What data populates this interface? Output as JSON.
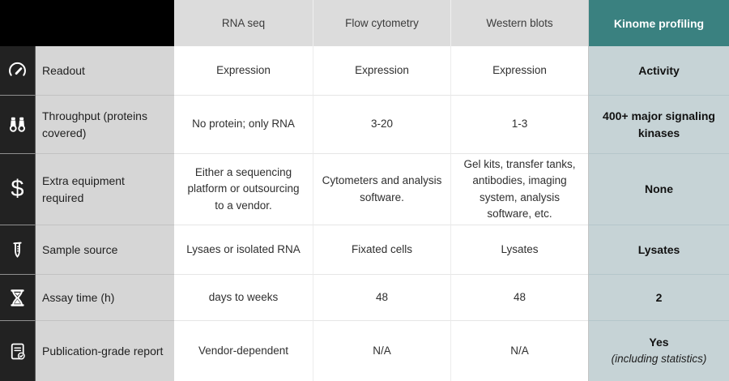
{
  "table": {
    "columns": [
      "RNA seq",
      "Flow cytometry",
      "Western blots",
      "Kinome profiling"
    ],
    "rows": [
      {
        "icon": "gauge-icon",
        "label": "Readout",
        "values": [
          "Expression",
          "Expression",
          "Expression",
          "Activity"
        ]
      },
      {
        "icon": "binoculars-icon",
        "label": "Throughput (proteins covered)",
        "values": [
          "No protein; only RNA",
          "3-20",
          "1-3",
          "400+ major signaling kinases"
        ]
      },
      {
        "icon": "dollar-icon",
        "label": "Extra equipment required",
        "values": [
          "Either a sequencing platform or outsourcing to a vendor.",
          "Cytometers and analysis software.",
          "Gel kits, transfer tanks, antibodies, imaging system, analysis software, etc.",
          "None"
        ]
      },
      {
        "icon": "tube-icon",
        "label": "Sample source",
        "values": [
          "Lysaes or isolated RNA",
          "Fixated cells",
          "Lysates",
          "Lysates"
        ]
      },
      {
        "icon": "hourglass-icon",
        "label": "Assay time (h)",
        "values": [
          "days to weeks",
          "48",
          "48",
          "2"
        ]
      },
      {
        "icon": "report-check-icon",
        "label": "Publication-grade report",
        "values": [
          "Vendor-dependent",
          "N/A",
          "N/A",
          "Yes"
        ],
        "note": "(including statistics)"
      }
    ],
    "colors": {
      "accent_teal": "#3a8180",
      "accent_teal_light": "#c6d3d6",
      "icon_rail": "#222222",
      "label_column": "#d6d6d6",
      "header_gray": "#dcdcdc",
      "corner_black": "#000000"
    }
  }
}
